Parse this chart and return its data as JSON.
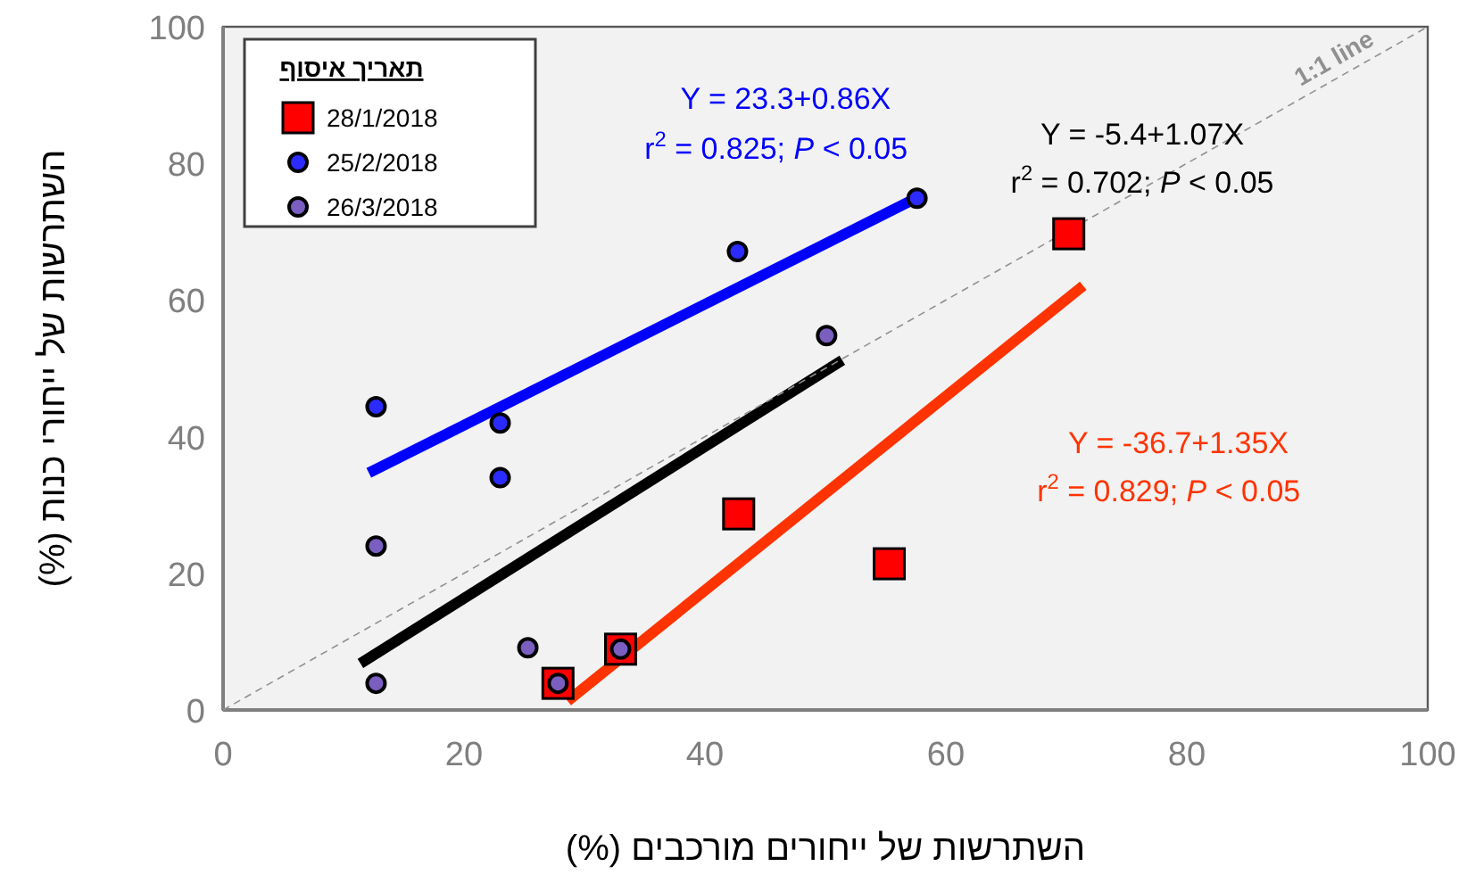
{
  "chart_data": {
    "type": "scatter",
    "xlabel": "השתרשות של ייחורים מורכבים (%)",
    "ylabel": "השתרשות של ייחורי כנות (%)",
    "legend_title": "תאריך איסוף",
    "legend": "top left",
    "xlim": [
      0,
      100
    ],
    "ylim": [
      0,
      100
    ],
    "xticks": [
      0,
      20,
      40,
      60,
      80,
      100
    ],
    "yticks": [
      0,
      20,
      40,
      60,
      80,
      100
    ],
    "series": [
      {
        "name": "28/1/2018",
        "marker": "square",
        "color": "#ff0000",
        "x": [
          27.8,
          33,
          42.8,
          55.3,
          70.2
        ],
        "values": [
          3.9,
          8.9,
          28.7,
          21.4,
          69.7
        ]
      },
      {
        "name": "25/2/2018",
        "marker": "circle",
        "color": "#2b2bff",
        "x": [
          12.7,
          23,
          23,
          42.7,
          57.6
        ],
        "values": [
          44.4,
          42,
          34,
          67.1,
          74.9
        ]
      },
      {
        "name": "26/3/2018",
        "marker": "circle",
        "color": "#7a5fc0",
        "x": [
          12.7,
          12.7,
          25.3,
          27.8,
          33,
          50.1
        ],
        "values": [
          24,
          3.9,
          9.1,
          3.9,
          8.9,
          54.8
        ]
      },
      {
        "type": "line",
        "color": "#0000ff",
        "x": [
          12.1,
          57.3
        ],
        "values": [
          34.7,
          74.7
        ]
      },
      {
        "type": "line",
        "color": "#000000",
        "x": [
          11.4,
          51.4
        ],
        "values": [
          6.8,
          51.2
        ]
      },
      {
        "type": "line",
        "color": "#ff3300",
        "x": [
          28.6,
          71.4
        ],
        "values": [
          1.3,
          62.1
        ]
      },
      {
        "name": "1:1 line",
        "type": "line",
        "line_style": "dashed",
        "color": "#909090",
        "x": [
          0,
          100
        ],
        "values": [
          0,
          100
        ]
      }
    ],
    "annotations": [
      "Y = 23.3+0.86X",
      "r$^{2}$ = 0.825; *P* < 0.05",
      "Y = -5.4+1.07X",
      "r$^{2}$ = 0.702; *P* < 0.05",
      "Y = -36.7+1.35X",
      "r$^{2}$ = 0.829; *P* < 0.05"
    ]
  }
}
